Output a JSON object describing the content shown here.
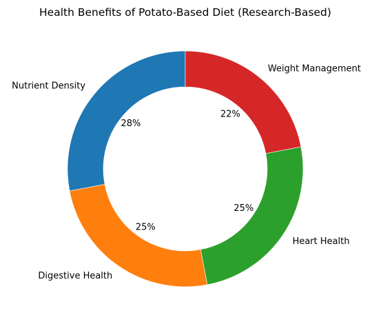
{
  "chart_data": {
    "type": "pie",
    "style": "donut",
    "title": "Health Benefits of Potato-Based Diet (Research-Based)",
    "start_angle_deg": 90,
    "direction": "counterclockwise",
    "slices": [
      {
        "label": "Nutrient Density",
        "value": 28,
        "pct_label": "28%",
        "color": "#1f77b4"
      },
      {
        "label": "Digestive Health",
        "value": 25,
        "pct_label": "25%",
        "color": "#ff7f0e"
      },
      {
        "label": "Heart Health",
        "value": 25,
        "pct_label": "25%",
        "color": "#2ca02c"
      },
      {
        "label": "Weight Management",
        "value": 22,
        "pct_label": "22%",
        "color": "#d62728"
      }
    ]
  }
}
